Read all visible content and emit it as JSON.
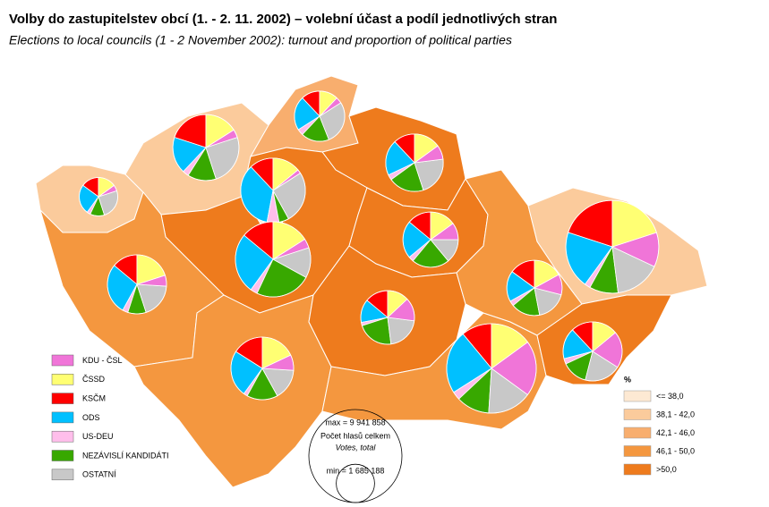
{
  "title": "Volby do zastupitelstev obcí (1. - 2. 11. 2002) – volební účast a podíl jednotlivých stran",
  "subtitle": "Elections to local councils (1 - 2 November 2002): turnout and proportion of political parties",
  "chart_data": {
    "type": "pie-map",
    "series": [
      {
        "name": "KDU - ČSL",
        "color": "#f075d8"
      },
      {
        "name": "ČSSD",
        "color": "#ffff73"
      },
      {
        "name": "KSČM",
        "color": "#ff0000"
      },
      {
        "name": "ODS",
        "color": "#00c0ff"
      },
      {
        "name": "US-DEU",
        "color": "#ffbeeb"
      },
      {
        "name": "NEZÁVISLÍ KANDIDÁTI",
        "color": "#38a800"
      },
      {
        "name": "OSTATNÍ",
        "color": "#c8c8c8"
      }
    ],
    "regions": [
      {
        "turnout_class": 1,
        "votes": 1700000,
        "values": [
          5,
          15,
          15,
          25,
          3,
          12,
          25
        ]
      },
      {
        "turnout_class": 1,
        "votes": 5000000,
        "values": [
          4,
          16,
          20,
          18,
          3,
          14,
          25
        ]
      },
      {
        "turnout_class": 2,
        "votes": 2900000,
        "values": [
          4,
          12,
          12,
          22,
          4,
          18,
          28
        ]
      },
      {
        "turnout_class": 4,
        "votes": 3800000,
        "values": [
          8,
          15,
          12,
          20,
          3,
          20,
          22
        ]
      },
      {
        "turnout_class": 0,
        "votes": 4800000,
        "values": [
          2,
          14,
          12,
          35,
          6,
          5,
          26
        ]
      },
      {
        "turnout_class": 4,
        "votes": 6500000,
        "values": [
          4,
          16,
          14,
          26,
          3,
          24,
          13
        ]
      },
      {
        "turnout_class": 3,
        "votes": 4000000,
        "values": [
          6,
          20,
          14,
          28,
          3,
          10,
          19
        ]
      },
      {
        "turnout_class": 3,
        "votes": 4500000,
        "values": [
          8,
          18,
          16,
          24,
          2,
          16,
          16
        ]
      },
      {
        "turnout_class": 4,
        "votes": 3500000,
        "values": [
          10,
          15,
          14,
          22,
          3,
          22,
          14
        ]
      },
      {
        "turnout_class": 4,
        "votes": 3300000,
        "values": [
          14,
          13,
          14,
          14,
          2,
          22,
          21
        ]
      },
      {
        "turnout_class": 3,
        "votes": 9200000,
        "values": [
          20,
          15,
          11,
          23,
          3,
          12,
          16
        ]
      },
      {
        "turnout_class": 3,
        "votes": 3500000,
        "values": [
          12,
          17,
          15,
          18,
          3,
          17,
          18
        ]
      },
      {
        "turnout_class": 1,
        "votes": 9900000,
        "values": [
          12,
          20,
          20,
          20,
          2,
          10,
          16
        ]
      },
      {
        "turnout_class": 4,
        "votes": 4000000,
        "values": [
          20,
          14,
          12,
          17,
          3,
          14,
          20
        ]
      }
    ],
    "turnout_legend": {
      "title": "%",
      "classes": [
        {
          "label": "<= 38,0",
          "color": "#fde9d3"
        },
        {
          "label": "38,1 - 42,0",
          "color": "#fbcb9c"
        },
        {
          "label": "42,1 - 46,0",
          "color": "#f8ae6e"
        },
        {
          "label": "46,1 - 50,0",
          "color": "#f4973f"
        },
        {
          "label": ">50,0",
          "color": "#ee7b1d"
        }
      ]
    },
    "size_legend": {
      "title": "Počet hlasů celkem",
      "subtitle": "Votes, total",
      "max": {
        "value": 9941858,
        "label": "max = 9 941 858"
      },
      "min": {
        "value": 1685188,
        "label": "min = 1 685 188"
      }
    }
  }
}
